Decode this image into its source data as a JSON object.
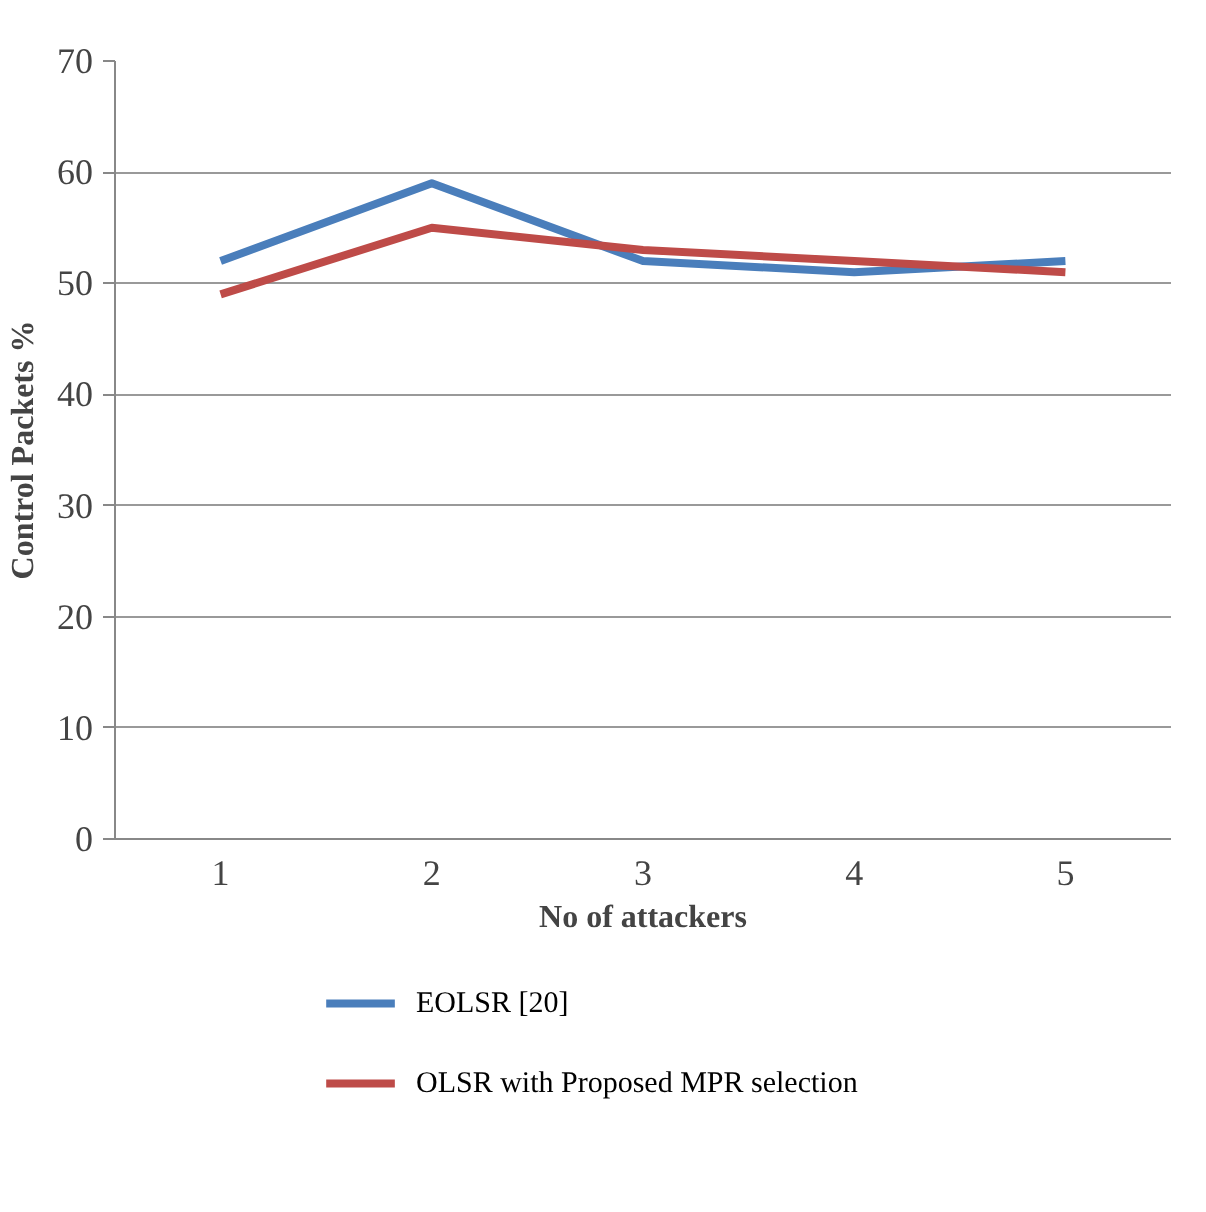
{
  "chart_data": {
    "type": "line",
    "xlabel": "No of attackers",
    "ylabel": "Control Packets %",
    "categories": [
      "1",
      "2",
      "3",
      "4",
      "5"
    ],
    "series": [
      {
        "name": "EOLSR [20]",
        "color": "#4a7ebb",
        "values": [
          52,
          59,
          52,
          51,
          52
        ]
      },
      {
        "name": "OLSR with Proposed  MPR selection",
        "color": "#be4b48",
        "values": [
          49,
          55,
          53,
          52,
          51
        ]
      }
    ],
    "ylim": [
      0,
      70
    ],
    "yticks": [
      0,
      10,
      20,
      30,
      40,
      50,
      60,
      70
    ],
    "grid": "y",
    "legend": "bottom",
    "line_style": "solid",
    "marker": "none"
  }
}
